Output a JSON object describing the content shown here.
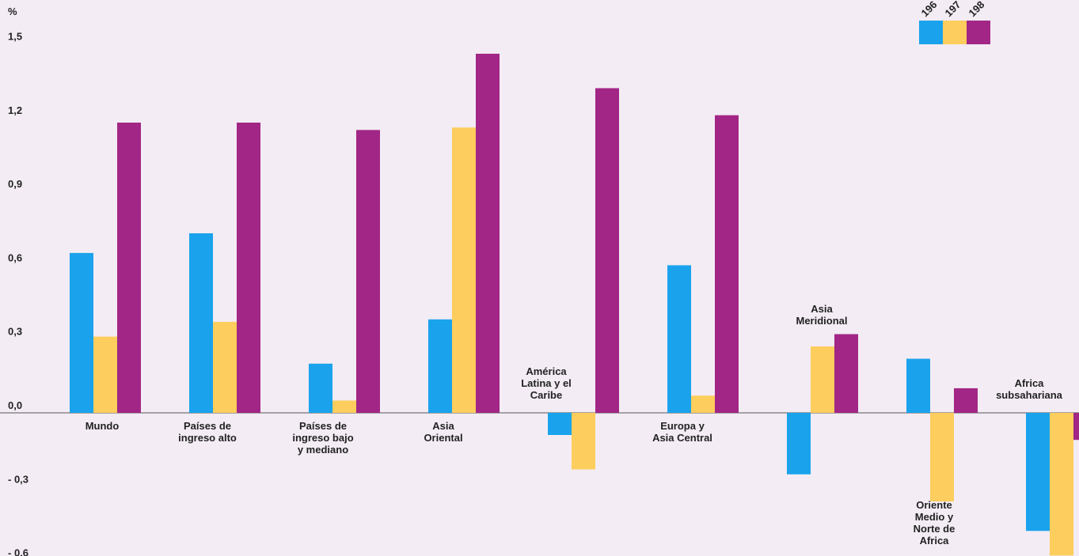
{
  "chart_data": {
    "type": "bar",
    "ylabel": "%",
    "ylim": [
      -0.6,
      1.5
    ],
    "yticks": [
      "1,5",
      "1,2",
      "0,9",
      "0,6",
      "0,3",
      "0,0",
      "- 0,3",
      "- 0,6"
    ],
    "ytick_values": [
      1.5,
      1.2,
      0.9,
      0.6,
      0.3,
      0.0,
      -0.3,
      -0.6
    ],
    "legend_position": "top-right",
    "categories": [
      "Mundo",
      "Países de ingreso alto",
      "Países de ingreso bajo y mediano",
      "Asia Oriental",
      "América Latina y el Caribe",
      "Europa y Asia Central",
      "Asia Meridional",
      "Oriente Medio y Norte de Africa",
      "Africa subsahariana"
    ],
    "category_lines": [
      [
        "Mundo"
      ],
      [
        "Países de",
        "ingreso alto"
      ],
      [
        "Países de",
        "ingreso bajo",
        "y mediano"
      ],
      [
        "Asia",
        "Oriental"
      ],
      [
        "América",
        "Latina y el",
        "Caribe"
      ],
      [
        "Europa y",
        "Asia Central"
      ],
      [
        "Asia",
        "Meridional"
      ],
      [
        "Oriente",
        "Medio y",
        "Norte de",
        "Africa"
      ],
      [
        "Africa",
        "subsahariana"
      ]
    ],
    "series": [
      {
        "name": "196",
        "color": "#1aa3ec",
        "values": [
          0.65,
          0.73,
          0.2,
          0.38,
          -0.09,
          0.6,
          -0.25,
          0.22,
          -0.48
        ]
      },
      {
        "name": "197",
        "color": "#fdcd5d",
        "values": [
          0.31,
          0.37,
          0.05,
          1.16,
          -0.23,
          0.07,
          0.27,
          -0.36,
          -0.58
        ]
      },
      {
        "name": "198",
        "color": "#a22685",
        "values": [
          1.18,
          1.18,
          1.15,
          1.46,
          1.32,
          1.21,
          0.32,
          0.1,
          -0.11
        ]
      }
    ]
  }
}
